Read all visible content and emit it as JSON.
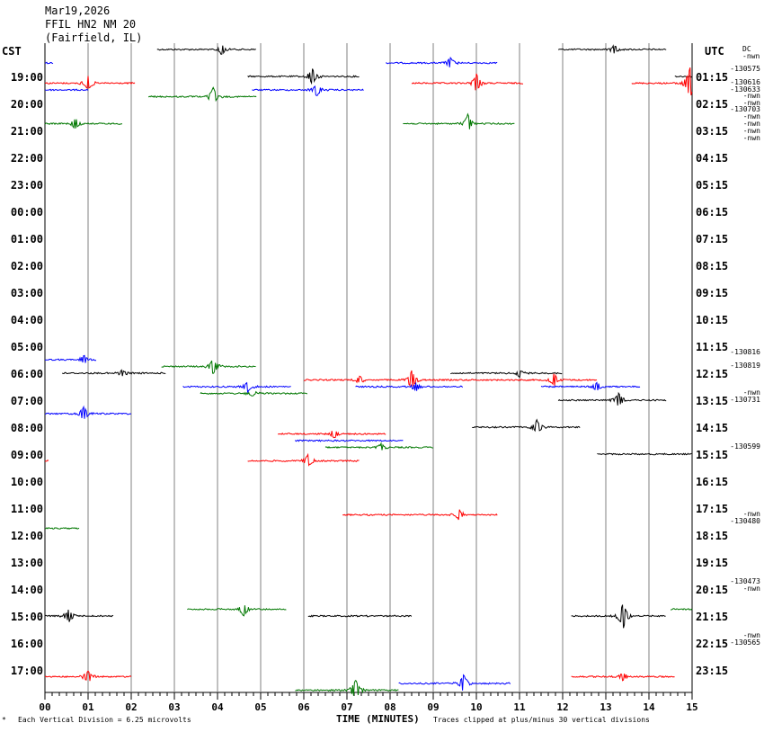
{
  "header": {
    "date": "Mar19,2026",
    "station": "FFIL HN2 NM 20",
    "location": "(Fairfield, IL)"
  },
  "zones": {
    "left": "CST",
    "right": "UTC"
  },
  "right_header": {
    "dc": "DC",
    "nwn": "-nwn"
  },
  "footer": {
    "scale_note": "Each Vertical Division =    6.25 microvolts",
    "clip_note": "Traces clipped at plus/minus 30 vertical divisions",
    "marker": "*"
  },
  "colors": {
    "black": "#000000",
    "red": "#ff0000",
    "blue": "#0000ff",
    "green": "#007700",
    "grid": "#808080"
  },
  "chart_data": {
    "type": "helicorder",
    "title": "FFIL HN2 NM 20 (Fairfield, IL)",
    "xlabel": "TIME (MINUTES)",
    "xlim": [
      0,
      15
    ],
    "x_ticks": [
      "00",
      "01",
      "02",
      "03",
      "04",
      "05",
      "06",
      "07",
      "08",
      "09",
      "10",
      "11",
      "12",
      "13",
      "14",
      "15"
    ],
    "left_labels": [
      "19:00",
      "20:00",
      "21:00",
      "22:00",
      "23:00",
      "00:00",
      "01:00",
      "02:00",
      "03:00",
      "04:00",
      "05:00",
      "06:00",
      "07:00",
      "08:00",
      "09:00",
      "10:00",
      "11:00",
      "12:00",
      "13:00",
      "14:00",
      "15:00",
      "16:00",
      "17:00"
    ],
    "right_labels": [
      "01:15",
      "02:15",
      "03:15",
      "04:15",
      "05:15",
      "06:15",
      "07:15",
      "08:15",
      "09:15",
      "10:15",
      "11:15",
      "12:15",
      "13:15",
      "14:15",
      "15:15",
      "16:15",
      "17:15",
      "18:15",
      "19:15",
      "20:15",
      "21:15",
      "22:15",
      "23:15"
    ],
    "dc_levels": [
      {
        "row": 1.0,
        "lines": [
          "-130575"
        ]
      },
      {
        "row": 1.5,
        "lines": [
          "-130616",
          "-130633"
        ]
      },
      {
        "row": 2.0,
        "lines": [
          "-nwn",
          "-nwn"
        ]
      },
      {
        "row": 2.5,
        "lines": [
          "-130703",
          "-nwn",
          "-nwn",
          "-nwn",
          "-nwn"
        ]
      },
      {
        "row": 11.5,
        "lines": [
          "-130816"
        ]
      },
      {
        "row": 12.0,
        "lines": [
          "-130819"
        ]
      },
      {
        "row": 13.0,
        "lines": [
          "-nwn",
          "-130731"
        ]
      },
      {
        "row": 15.0,
        "lines": [
          "-130599"
        ]
      },
      {
        "row": 17.5,
        "lines": [
          "-nwn",
          "-130480"
        ]
      },
      {
        "row": 20.0,
        "lines": [
          "-130473",
          "-nwn"
        ]
      },
      {
        "row": 22.0,
        "lines": [
          "-nwn",
          "-130565"
        ]
      }
    ],
    "trace_color_cycle": [
      "black",
      "red",
      "blue",
      "green"
    ],
    "segments": [
      {
        "row": -1,
        "start": 2.6,
        "end": 4.9,
        "events": [
          {
            "t": 4.1,
            "amp": 6
          }
        ]
      },
      {
        "row": -1,
        "start": 11.9,
        "end": 14.4,
        "events": [
          {
            "t": 13.2,
            "amp": 5
          }
        ]
      },
      {
        "row": -0.5,
        "start": 0.0,
        "end": 0.2,
        "events": []
      },
      {
        "row": -0.5,
        "start": 7.9,
        "end": 10.5,
        "events": [
          {
            "t": 9.4,
            "amp": 6
          }
        ]
      },
      {
        "row": 0,
        "start": 4.7,
        "end": 7.3,
        "events": [
          {
            "t": 6.2,
            "amp": 9
          }
        ]
      },
      {
        "row": 0,
        "start": 14.6,
        "end": 15.0,
        "events": []
      },
      {
        "row": 0.25,
        "start": 0.0,
        "end": 2.1,
        "events": [
          {
            "t": 1.0,
            "amp": 8
          }
        ]
      },
      {
        "row": 0.25,
        "start": 8.5,
        "end": 11.1,
        "events": [
          {
            "t": 10.0,
            "amp": 10
          }
        ]
      },
      {
        "row": 0.25,
        "start": 13.6,
        "end": 15.0,
        "events": [
          {
            "t": 14.95,
            "amp": 18
          }
        ]
      },
      {
        "row": 0.5,
        "start": 0.0,
        "end": 1.0,
        "events": []
      },
      {
        "row": 0.5,
        "start": 4.8,
        "end": 7.4,
        "events": [
          {
            "t": 6.3,
            "amp": 7
          }
        ]
      },
      {
        "row": 0.75,
        "start": 2.4,
        "end": 4.9,
        "events": [
          {
            "t": 3.9,
            "amp": 10
          }
        ]
      },
      {
        "row": 1.75,
        "start": 0.0,
        "end": 1.8,
        "events": [
          {
            "t": 0.7,
            "amp": 6
          }
        ]
      },
      {
        "row": 1.75,
        "start": 8.3,
        "end": 10.9,
        "events": [
          {
            "t": 9.8,
            "amp": 10
          }
        ]
      },
      {
        "row": 10.5,
        "start": 0.0,
        "end": 1.2,
        "events": [
          {
            "t": 0.9,
            "amp": 5
          }
        ]
      },
      {
        "row": 10.75,
        "start": 2.7,
        "end": 4.9,
        "events": [
          {
            "t": 3.9,
            "amp": 9
          }
        ]
      },
      {
        "row": 11,
        "start": 0.4,
        "end": 2.8,
        "events": [
          {
            "t": 1.8,
            "amp": 4
          }
        ]
      },
      {
        "row": 11,
        "start": 9.4,
        "end": 12.0,
        "events": [
          {
            "t": 11.0,
            "amp": 4
          }
        ]
      },
      {
        "row": 11.25,
        "start": 6.0,
        "end": 12.8,
        "events": [
          {
            "t": 7.3,
            "amp": 5
          },
          {
            "t": 8.5,
            "amp": 10
          },
          {
            "t": 11.8,
            "amp": 7
          }
        ]
      },
      {
        "row": 11.5,
        "start": 3.2,
        "end": 5.7,
        "events": [
          {
            "t": 4.7,
            "amp": 6
          }
        ]
      },
      {
        "row": 11.5,
        "start": 7.2,
        "end": 9.7,
        "events": [
          {
            "t": 8.6,
            "amp": 5
          }
        ]
      },
      {
        "row": 11.5,
        "start": 11.5,
        "end": 13.8,
        "events": [
          {
            "t": 12.8,
            "amp": 5
          }
        ]
      },
      {
        "row": 11.75,
        "start": 3.6,
        "end": 6.1,
        "events": [
          {
            "t": 4.8,
            "amp": 4
          }
        ]
      },
      {
        "row": 12,
        "start": 11.9,
        "end": 14.4,
        "events": [
          {
            "t": 13.3,
            "amp": 8
          }
        ]
      },
      {
        "row": 12.5,
        "start": 0.0,
        "end": 2.0,
        "events": [
          {
            "t": 0.9,
            "amp": 8
          }
        ]
      },
      {
        "row": 13,
        "start": 9.9,
        "end": 12.4,
        "events": [
          {
            "t": 11.4,
            "amp": 8
          }
        ]
      },
      {
        "row": 13.25,
        "start": 5.4,
        "end": 7.9,
        "events": [
          {
            "t": 6.7,
            "amp": 5
          }
        ]
      },
      {
        "row": 13.5,
        "start": 5.8,
        "end": 8.3,
        "events": []
      },
      {
        "row": 13.75,
        "start": 6.5,
        "end": 9.0,
        "events": [
          {
            "t": 7.8,
            "amp": 4
          }
        ]
      },
      {
        "row": 14.25,
        "start": 0.0,
        "end": 0.1,
        "events": []
      },
      {
        "row": 14.25,
        "start": 4.7,
        "end": 7.3,
        "events": [
          {
            "t": 6.1,
            "amp": 7
          }
        ]
      },
      {
        "row": 14,
        "start": 12.8,
        "end": 15.0,
        "events": []
      },
      {
        "row": 16.25,
        "start": 6.9,
        "end": 10.5,
        "events": [
          {
            "t": 9.6,
            "amp": 6
          }
        ]
      },
      {
        "row": 16.75,
        "start": 0.0,
        "end": 0.8,
        "events": []
      },
      {
        "row": 19.75,
        "start": 14.5,
        "end": 15.0,
        "events": []
      },
      {
        "row": 19.75,
        "start": 3.3,
        "end": 5.6,
        "events": [
          {
            "t": 4.6,
            "amp": 8
          }
        ]
      },
      {
        "row": 20,
        "start": 0.0,
        "end": 1.6,
        "events": [
          {
            "t": 0.55,
            "amp": 7
          }
        ]
      },
      {
        "row": 20,
        "start": 6.1,
        "end": 8.5,
        "events": []
      },
      {
        "row": 20,
        "start": 12.2,
        "end": 14.4,
        "events": [
          {
            "t": 13.4,
            "amp": 15
          }
        ]
      },
      {
        "row": 22.25,
        "start": 0.0,
        "end": 2.0,
        "events": [
          {
            "t": 1.0,
            "amp": 7
          }
        ]
      },
      {
        "row": 22.25,
        "start": 12.2,
        "end": 14.6,
        "events": [
          {
            "t": 13.4,
            "amp": 5
          }
        ]
      },
      {
        "row": 22.5,
        "start": 8.2,
        "end": 10.8,
        "events": [
          {
            "t": 9.7,
            "amp": 10
          }
        ]
      },
      {
        "row": 22.75,
        "start": 5.8,
        "end": 8.2,
        "events": [
          {
            "t": 7.2,
            "amp": 12
          }
        ]
      }
    ]
  }
}
